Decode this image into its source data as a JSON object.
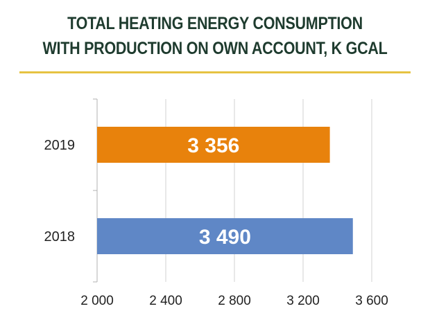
{
  "title_line1": "TOTAL HEATING ENERGY CONSUMPTION",
  "title_line2": "WITH PRODUCTION ON OWN ACCOUNT, K GCAL",
  "chart_data": {
    "type": "bar",
    "orientation": "horizontal",
    "title": "TOTAL HEATING ENERGY CONSUMPTION WITH PRODUCTION ON OWN ACCOUNT, K GCAL",
    "categories": [
      "2019",
      "2018"
    ],
    "values": [
      3356,
      3490
    ],
    "data_labels": [
      "3 356",
      "3 490"
    ],
    "bar_colors": [
      "#e8820c",
      "#5f87c6"
    ],
    "xlim": [
      2000,
      3600
    ],
    "xticks": [
      2000,
      2400,
      2800,
      3200,
      3600
    ],
    "xtick_labels": [
      "2 000",
      "2 400",
      "2 800",
      "3 200",
      "3 600"
    ],
    "grid": true,
    "legend": "none"
  }
}
